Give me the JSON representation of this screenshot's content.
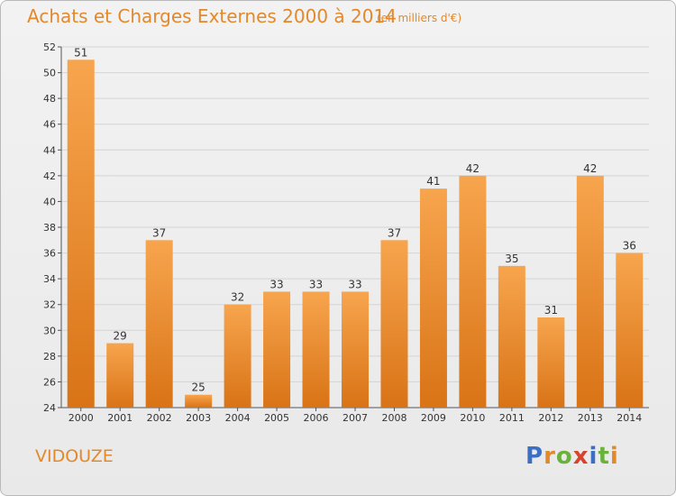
{
  "header": {
    "title": "Achats et Charges Externes 2000 à 2014",
    "subtitle": "(en milliers d'€)"
  },
  "footer": {
    "place_name": "VIDOUZE",
    "logo_text": "Proxiti",
    "logo_colors": [
      "#3a6fc4",
      "#e2892b",
      "#6bb13d",
      "#d9422b",
      "#3a6fc4",
      "#6bb13d",
      "#e2892b"
    ]
  },
  "colors": {
    "bar_top": "#f7a54e",
    "bar_bottom": "#d97316",
    "accent": "#e2892b",
    "grid": "#d4d4d4",
    "axis": "#555555"
  },
  "chart_data": {
    "type": "bar",
    "title": "Achats et Charges Externes 2000 à 2014",
    "subtitle": "(en milliers d'€)",
    "categories": [
      "2000",
      "2001",
      "2002",
      "2003",
      "2004",
      "2005",
      "2006",
      "2007",
      "2008",
      "2009",
      "2010",
      "2011",
      "2012",
      "2013",
      "2014"
    ],
    "values": [
      51,
      29,
      37,
      25,
      32,
      33,
      33,
      33,
      37,
      41,
      42,
      35,
      31,
      42,
      36
    ],
    "ylim": [
      24,
      52
    ],
    "yticks": [
      24,
      26,
      28,
      30,
      32,
      34,
      36,
      38,
      40,
      42,
      44,
      46,
      48,
      50,
      52
    ],
    "grid": true,
    "data_labels": true
  }
}
